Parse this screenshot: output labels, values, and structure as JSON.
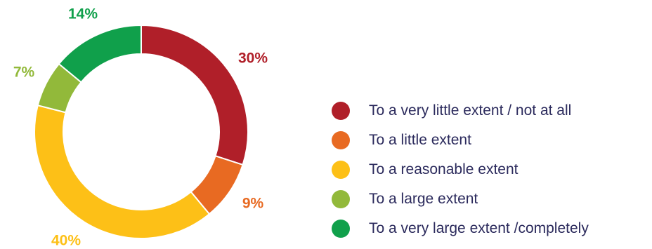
{
  "chart_data": {
    "type": "pie",
    "subtype": "donut",
    "title": "",
    "legend_position": "right",
    "slices": [
      {
        "label": "To a very little extent / not at all",
        "value": 30,
        "value_label": "30%",
        "color": "#b01f29"
      },
      {
        "label": "To a little extent",
        "value": 9,
        "value_label": "9%",
        "color": "#e86a22"
      },
      {
        "label": "To a reasonable extent",
        "value": 40,
        "value_label": "40%",
        "color": "#fdc017"
      },
      {
        "label": "To a large extent",
        "value": 7,
        "value_label": "7%",
        "color": "#92b93a"
      },
      {
        "label": "To a very large extent /completely",
        "value": 14,
        "value_label": "14%",
        "color": "#10a04b"
      }
    ]
  }
}
